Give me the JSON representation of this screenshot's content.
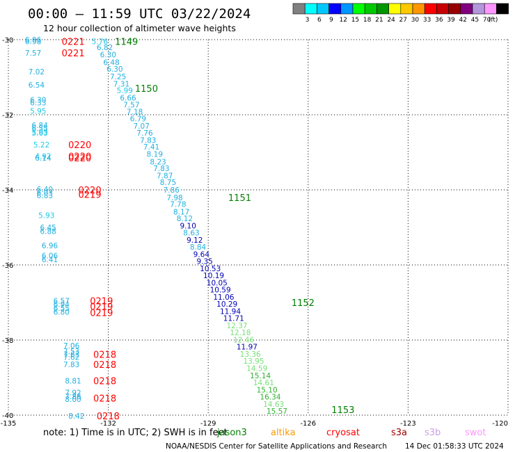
{
  "header": {
    "title": "00:00 – 11:59 UTC 03/22/2024",
    "subtitle": "12 hour collection of altimeter wave heights"
  },
  "colorbar": {
    "labels": [
      "3",
      "6",
      "9",
      "12",
      "15",
      "18",
      "21",
      "24",
      "27",
      "30",
      "33",
      "36",
      "39",
      "42",
      "45",
      "70"
    ],
    "unit": "(ft)",
    "colors": [
      "#808080",
      "#00ffff",
      "#00c8ff",
      "#0000ff",
      "#0096ff",
      "#00ff00",
      "#00c800",
      "#009600",
      "#ffff00",
      "#ffc800",
      "#ff9600",
      "#ff0000",
      "#c80000",
      "#960000",
      "#800080",
      "#b496dc",
      "#ff96ff",
      "#000000"
    ]
  },
  "note": {
    "text": "note:  1) Time is in UTC;  2) SWH is in feet",
    "missions": [
      {
        "name": "jason3",
        "color": "#008000"
      },
      {
        "name": "altika",
        "color": "#ff9900"
      },
      {
        "name": "cryosat",
        "color": "#ff0000"
      },
      {
        "name": "s3a",
        "color": "#a00000"
      },
      {
        "name": "s3b",
        "color": "#c8a0e6"
      },
      {
        "name": "swot",
        "color": "#ff96ff"
      }
    ]
  },
  "footer": {
    "credit": "NOAA/NESDIS Center for Satellite Applications and Research",
    "timestamp": "14 Dec 01:58:33 UTC 2024"
  },
  "chart_data": {
    "type": "scatter",
    "title": "00:00 – 11:59 UTC 03/22/2024",
    "subtitle": "12 hour collection of altimeter wave heights",
    "x_ticks": [
      "-135",
      "-132",
      "-129",
      "-126",
      "-123",
      "-120"
    ],
    "y_ticks": [
      "-30",
      "-32",
      "-34",
      "-36",
      "-38",
      "-40"
    ],
    "xlim": [
      -135,
      -120
    ],
    "ylim": [
      -40,
      -30
    ],
    "grid": true,
    "track_labels": [
      {
        "text": "1149",
        "lon": -131.8,
        "lat": -30.05,
        "mission": "jason3"
      },
      {
        "text": "1150",
        "lon": -131.2,
        "lat": -31.3,
        "mission": "jason3"
      },
      {
        "text": "1151",
        "lon": -128.4,
        "lat": -34.2,
        "mission": "jason3"
      },
      {
        "text": "1152",
        "lon": -126.5,
        "lat": -37.0,
        "mission": "jason3"
      },
      {
        "text": "1153",
        "lon": -125.3,
        "lat": -39.85,
        "mission": "jason3"
      },
      {
        "text": "0221",
        "lon": -133.4,
        "lat": -30.05,
        "mission": "cryosat"
      },
      {
        "text": "0221",
        "lon": -133.4,
        "lat": -30.35,
        "mission": "cryosat"
      },
      {
        "text": "0220",
        "lon": -133.2,
        "lat": -32.8,
        "mission": "cryosat"
      },
      {
        "text": "0220",
        "lon": -133.2,
        "lat": -33.1,
        "mission": "cryosat"
      },
      {
        "text": "0220",
        "lon": -133.2,
        "lat": -33.15,
        "mission": "cryosat"
      },
      {
        "text": "0220",
        "lon": -132.9,
        "lat": -34.0,
        "mission": "cryosat"
      },
      {
        "text": "0219",
        "lon": -132.9,
        "lat": -34.12,
        "mission": "cryosat"
      },
      {
        "text": "0219",
        "lon": -132.55,
        "lat": -36.95,
        "mission": "cryosat"
      },
      {
        "text": "0219",
        "lon": -132.55,
        "lat": -37.1,
        "mission": "cryosat"
      },
      {
        "text": "0219",
        "lon": -132.55,
        "lat": -37.27,
        "mission": "cryosat"
      },
      {
        "text": "0218",
        "lon": -132.45,
        "lat": -38.38,
        "mission": "cryosat"
      },
      {
        "text": "0218",
        "lon": -132.45,
        "lat": -38.65,
        "mission": "cryosat"
      },
      {
        "text": "0218",
        "lon": -132.45,
        "lat": -39.08,
        "mission": "cryosat"
      },
      {
        "text": "0218",
        "lon": -132.45,
        "lat": -39.55,
        "mission": "cryosat"
      },
      {
        "text": "0218",
        "lon": -132.35,
        "lat": -40.02,
        "mission": "cryosat"
      }
    ],
    "points": [
      {
        "lon": -134.5,
        "lat": -30.0,
        "v": 6.96
      },
      {
        "lon": -134.5,
        "lat": -30.05,
        "v": 6.98
      },
      {
        "lon": -134.5,
        "lat": -30.35,
        "v": 7.57
      },
      {
        "lon": -134.4,
        "lat": -30.85,
        "v": 7.02
      },
      {
        "lon": -134.4,
        "lat": -31.2,
        "v": 6.54
      },
      {
        "lon": -134.35,
        "lat": -31.6,
        "v": 6.3
      },
      {
        "lon": -134.35,
        "lat": -31.68,
        "v": 6.33
      },
      {
        "lon": -134.35,
        "lat": -31.9,
        "v": 5.95
      },
      {
        "lon": -134.3,
        "lat": -32.28,
        "v": 6.84
      },
      {
        "lon": -134.3,
        "lat": -32.36,
        "v": 6.55
      },
      {
        "lon": -134.3,
        "lat": -32.45,
        "v": 5.95
      },
      {
        "lon": -134.3,
        "lat": -32.48,
        "v": 5.63
      },
      {
        "lon": -134.25,
        "lat": -32.8,
        "v": 5.22
      },
      {
        "lon": -134.2,
        "lat": -33.1,
        "v": 4.92
      },
      {
        "lon": -134.2,
        "lat": -33.15,
        "v": 6.14
      },
      {
        "lon": -134.15,
        "lat": -33.98,
        "v": 6.4
      },
      {
        "lon": -134.15,
        "lat": -34.07,
        "v": 6.03
      },
      {
        "lon": -134.15,
        "lat": -34.15,
        "v": 6.83
      },
      {
        "lon": -134.1,
        "lat": -34.68,
        "v": 5.93
      },
      {
        "lon": -134.05,
        "lat": -35.0,
        "v": 6.45
      },
      {
        "lon": -134.05,
        "lat": -35.1,
        "v": 6.88
      },
      {
        "lon": -134.0,
        "lat": -35.48,
        "v": 6.96
      },
      {
        "lon": -134.0,
        "lat": -35.75,
        "v": 6.06
      },
      {
        "lon": -134.0,
        "lat": -35.85,
        "v": 6.41
      },
      {
        "lon": -133.65,
        "lat": -36.95,
        "v": 6.57
      },
      {
        "lon": -133.65,
        "lat": -37.05,
        "v": 6.94
      },
      {
        "lon": -133.65,
        "lat": -37.15,
        "v": 6.55
      },
      {
        "lon": -133.65,
        "lat": -37.25,
        "v": 6.8
      },
      {
        "lon": -133.35,
        "lat": -38.15,
        "v": 7.06
      },
      {
        "lon": -133.35,
        "lat": -38.3,
        "v": 7.53
      },
      {
        "lon": -133.35,
        "lat": -38.38,
        "v": 7.63
      },
      {
        "lon": -133.35,
        "lat": -38.45,
        "v": 7.62
      },
      {
        "lon": -133.35,
        "lat": -38.65,
        "v": 7.83
      },
      {
        "lon": -133.3,
        "lat": -39.08,
        "v": 8.81
      },
      {
        "lon": -133.3,
        "lat": -39.4,
        "v": 7.92
      },
      {
        "lon": -133.3,
        "lat": -39.5,
        "v": 7.86
      },
      {
        "lon": -133.3,
        "lat": -39.57,
        "v": 8.0
      },
      {
        "lon": -133.2,
        "lat": -40.02,
        "v": 8.42
      },
      {
        "lon": -132.5,
        "lat": -30.05,
        "v": 5.76
      },
      {
        "lon": -132.35,
        "lat": -30.2,
        "v": 6.82
      },
      {
        "lon": -132.25,
        "lat": -30.4,
        "v": 6.3
      },
      {
        "lon": -132.15,
        "lat": -30.6,
        "v": 6.48
      },
      {
        "lon": -132.05,
        "lat": -30.78,
        "v": 6.3
      },
      {
        "lon": -131.95,
        "lat": -30.98,
        "v": 7.25
      },
      {
        "lon": -131.85,
        "lat": -31.18,
        "v": 7.31
      },
      {
        "lon": -131.75,
        "lat": -31.35,
        "v": 5.99
      },
      {
        "lon": -131.65,
        "lat": -31.55,
        "v": 6.66
      },
      {
        "lon": -131.55,
        "lat": -31.73,
        "v": 7.57
      },
      {
        "lon": -131.45,
        "lat": -31.92,
        "v": 7.18
      },
      {
        "lon": -131.35,
        "lat": -32.1,
        "v": 6.79
      },
      {
        "lon": -131.25,
        "lat": -32.3,
        "v": 7.07
      },
      {
        "lon": -131.15,
        "lat": -32.48,
        "v": 7.76
      },
      {
        "lon": -131.05,
        "lat": -32.68,
        "v": 7.83
      },
      {
        "lon": -130.95,
        "lat": -32.85,
        "v": 7.41
      },
      {
        "lon": -130.85,
        "lat": -33.05,
        "v": 8.19
      },
      {
        "lon": -130.75,
        "lat": -33.25,
        "v": 8.23
      },
      {
        "lon": -130.65,
        "lat": -33.43,
        "v": 7.83
      },
      {
        "lon": -130.55,
        "lat": -33.62,
        "v": 7.87
      },
      {
        "lon": -130.45,
        "lat": -33.8,
        "v": 8.75
      },
      {
        "lon": -130.35,
        "lat": -34.0,
        "v": 7.86
      },
      {
        "lon": -130.25,
        "lat": -34.2,
        "v": 7.98
      },
      {
        "lon": -130.15,
        "lat": -34.38,
        "v": 7.78
      },
      {
        "lon": -130.05,
        "lat": -34.58,
        "v": 8.17
      },
      {
        "lon": -129.95,
        "lat": -34.76,
        "v": 8.12
      },
      {
        "lon": -129.85,
        "lat": -34.95,
        "v": 9.1
      },
      {
        "lon": -129.75,
        "lat": -35.14,
        "v": 8.63
      },
      {
        "lon": -129.65,
        "lat": -35.33,
        "v": 9.12
      },
      {
        "lon": -129.55,
        "lat": -35.52,
        "v": 8.84
      },
      {
        "lon": -129.45,
        "lat": -35.71,
        "v": 9.64
      },
      {
        "lon": -129.35,
        "lat": -35.9,
        "v": 9.35
      },
      {
        "lon": -129.25,
        "lat": -36.09,
        "v": 10.53
      },
      {
        "lon": -129.15,
        "lat": -36.28,
        "v": 10.19
      },
      {
        "lon": -129.05,
        "lat": -36.47,
        "v": 10.05
      },
      {
        "lon": -128.95,
        "lat": -36.66,
        "v": 10.59
      },
      {
        "lon": -128.85,
        "lat": -36.85,
        "v": 11.06
      },
      {
        "lon": -128.75,
        "lat": -37.04,
        "v": 10.29
      },
      {
        "lon": -128.65,
        "lat": -37.23,
        "v": 11.94
      },
      {
        "lon": -128.55,
        "lat": -37.42,
        "v": 11.71
      },
      {
        "lon": -128.45,
        "lat": -37.61,
        "v": 12.37
      },
      {
        "lon": -128.35,
        "lat": -37.8,
        "v": 12.18
      },
      {
        "lon": -128.25,
        "lat": -37.99,
        "v": 12.46
      },
      {
        "lon": -128.15,
        "lat": -38.18,
        "v": 11.97
      },
      {
        "lon": -128.05,
        "lat": -38.37,
        "v": 13.36
      },
      {
        "lon": -127.95,
        "lat": -38.56,
        "v": 13.95
      },
      {
        "lon": -127.85,
        "lat": -38.75,
        "v": 14.59
      },
      {
        "lon": -127.75,
        "lat": -38.94,
        "v": 15.14
      },
      {
        "lon": -127.65,
        "lat": -39.13,
        "v": 14.61
      },
      {
        "lon": -127.55,
        "lat": -39.32,
        "v": 15.1
      },
      {
        "lon": -127.45,
        "lat": -39.51,
        "v": 16.34
      },
      {
        "lon": -127.35,
        "lat": -39.7,
        "v": 14.63
      },
      {
        "lon": -127.25,
        "lat": -39.89,
        "v": 15.57
      }
    ]
  }
}
